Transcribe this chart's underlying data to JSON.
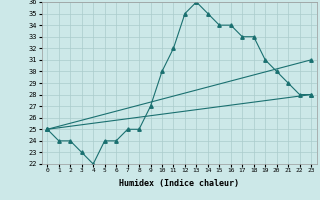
{
  "xlabel": "Humidex (Indice chaleur)",
  "xlim": [
    -0.5,
    23.5
  ],
  "ylim": [
    22,
    36
  ],
  "yticks": [
    22,
    23,
    24,
    25,
    26,
    27,
    28,
    29,
    30,
    31,
    32,
    33,
    34,
    35,
    36
  ],
  "xticks": [
    0,
    1,
    2,
    3,
    4,
    5,
    6,
    7,
    8,
    9,
    10,
    11,
    12,
    13,
    14,
    15,
    16,
    17,
    18,
    19,
    20,
    21,
    22,
    23
  ],
  "bg_color": "#cce8e8",
  "line_color": "#1a7070",
  "grid_color": "#aacccc",
  "series": [
    {
      "x": [
        0,
        1,
        2,
        3,
        4,
        5,
        6,
        7,
        8,
        9,
        10,
        11,
        12,
        13,
        14,
        15,
        16,
        17,
        18,
        19,
        20,
        21,
        22,
        23
      ],
      "y": [
        25,
        24,
        24,
        23,
        22,
        24,
        24,
        25,
        25,
        27,
        30,
        32,
        35,
        36,
        35,
        34,
        34,
        33,
        33,
        31,
        30,
        29,
        28,
        28
      ]
    },
    {
      "x": [
        0,
        23
      ],
      "y": [
        25,
        28
      ]
    },
    {
      "x": [
        0,
        23
      ],
      "y": [
        25,
        31
      ]
    }
  ]
}
